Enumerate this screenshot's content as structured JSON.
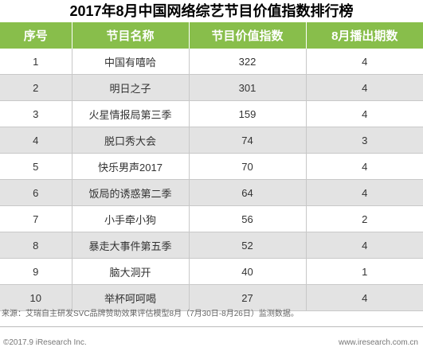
{
  "title": "2017年8月中国网络综艺节目价值指数排行榜",
  "table": {
    "headers": [
      "序号",
      "节目名称",
      "节目价值指数",
      "8月播出期数"
    ],
    "rows": [
      {
        "rank": "1",
        "name": "中国有嘻哈",
        "value": "322",
        "episodes": "4"
      },
      {
        "rank": "2",
        "name": "明日之子",
        "value": "301",
        "episodes": "4"
      },
      {
        "rank": "3",
        "name": "火星情报局第三季",
        "value": "159",
        "episodes": "4"
      },
      {
        "rank": "4",
        "name": "脱口秀大会",
        "value": "74",
        "episodes": "3"
      },
      {
        "rank": "5",
        "name": "快乐男声2017",
        "value": "70",
        "episodes": "4"
      },
      {
        "rank": "6",
        "name": "饭局的诱惑第二季",
        "value": "64",
        "episodes": "4"
      },
      {
        "rank": "7",
        "name": "小手牵小狗",
        "value": "56",
        "episodes": "2"
      },
      {
        "rank": "8",
        "name": "暴走大事件第五季",
        "value": "52",
        "episodes": "4"
      },
      {
        "rank": "9",
        "name": "脑大洞开",
        "value": "40",
        "episodes": "1"
      },
      {
        "rank": "10",
        "name": "举杯呵呵喝",
        "value": "27",
        "episodes": "4"
      }
    ]
  },
  "source": "来源：艾瑞自主研发SVC品牌赞助效果评估模型8月（7月30日-8月26日）监测数据。",
  "footer": {
    "copyright": "©2017.9 iResearch Inc.",
    "website": "www.iresearch.com.cn"
  },
  "colors": {
    "header_bg": "#88be4b",
    "header_text": "#ffffff",
    "row_alt_bg": "#e3e3e3",
    "row_bg": "#ffffff"
  }
}
